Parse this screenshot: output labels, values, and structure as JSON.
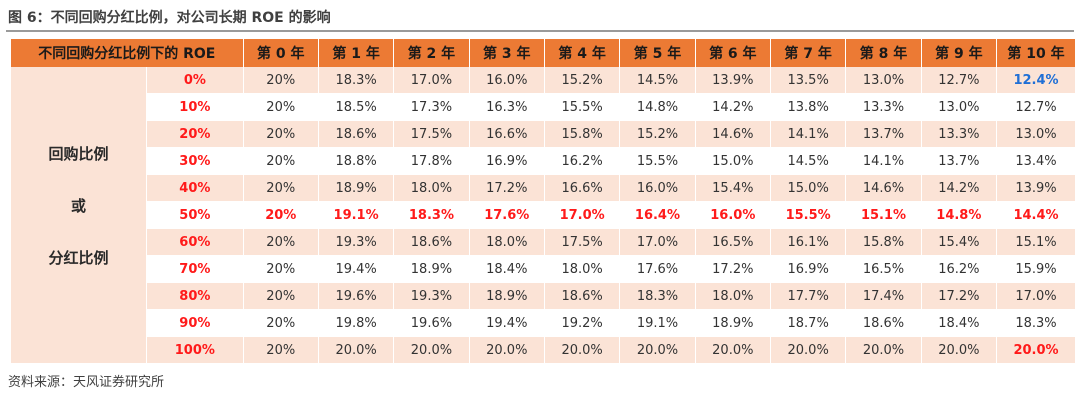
{
  "title": "图 6：不同回购分红比例，对公司长期 ROE 的影响",
  "table": {
    "corner_header": "不同回购分红比例下的 ROE",
    "year_headers": [
      "第 0 年",
      "第 1 年",
      "第 2 年",
      "第 3 年",
      "第 4 年",
      "第 5 年",
      "第 6 年",
      "第 7 年",
      "第 8 年",
      "第 9 年",
      "第 10 年"
    ],
    "side_labels": [
      "回购比例",
      "或",
      "分红比例"
    ],
    "rows": [
      {
        "ratio": "0%",
        "values": [
          "20%",
          "18.3%",
          "17.0%",
          "16.0%",
          "15.2%",
          "14.5%",
          "13.9%",
          "13.5%",
          "13.0%",
          "12.7%",
          "12.4%"
        ]
      },
      {
        "ratio": "10%",
        "values": [
          "20%",
          "18.5%",
          "17.3%",
          "16.3%",
          "15.5%",
          "14.8%",
          "14.2%",
          "13.8%",
          "13.3%",
          "13.0%",
          "12.7%"
        ]
      },
      {
        "ratio": "20%",
        "values": [
          "20%",
          "18.6%",
          "17.5%",
          "16.6%",
          "15.8%",
          "15.2%",
          "14.6%",
          "14.1%",
          "13.7%",
          "13.3%",
          "13.0%"
        ]
      },
      {
        "ratio": "30%",
        "values": [
          "20%",
          "18.8%",
          "17.8%",
          "16.9%",
          "16.2%",
          "15.5%",
          "15.0%",
          "14.5%",
          "14.1%",
          "13.7%",
          "13.4%"
        ]
      },
      {
        "ratio": "40%",
        "values": [
          "20%",
          "18.9%",
          "18.0%",
          "17.2%",
          "16.6%",
          "16.0%",
          "15.4%",
          "15.0%",
          "14.6%",
          "14.2%",
          "13.9%"
        ]
      },
      {
        "ratio": "50%",
        "values": [
          "20%",
          "19.1%",
          "18.3%",
          "17.6%",
          "17.0%",
          "16.4%",
          "16.0%",
          "15.5%",
          "15.1%",
          "14.8%",
          "14.4%"
        ]
      },
      {
        "ratio": "60%",
        "values": [
          "20%",
          "19.3%",
          "18.6%",
          "18.0%",
          "17.5%",
          "17.0%",
          "16.5%",
          "16.1%",
          "15.8%",
          "15.4%",
          "15.1%"
        ]
      },
      {
        "ratio": "70%",
        "values": [
          "20%",
          "19.4%",
          "18.9%",
          "18.4%",
          "18.0%",
          "17.6%",
          "17.2%",
          "16.9%",
          "16.5%",
          "16.2%",
          "15.9%"
        ]
      },
      {
        "ratio": "80%",
        "values": [
          "20%",
          "19.6%",
          "19.3%",
          "18.9%",
          "18.6%",
          "18.3%",
          "18.0%",
          "17.7%",
          "17.4%",
          "17.2%",
          "17.0%"
        ]
      },
      {
        "ratio": "90%",
        "values": [
          "20%",
          "19.8%",
          "19.6%",
          "19.4%",
          "19.2%",
          "19.1%",
          "18.9%",
          "18.7%",
          "18.6%",
          "18.4%",
          "18.3%"
        ]
      },
      {
        "ratio": "100%",
        "values": [
          "20%",
          "20.0%",
          "20.0%",
          "20.0%",
          "20.0%",
          "20.0%",
          "20.0%",
          "20.0%",
          "20.0%",
          "20.0%",
          "20.0%"
        ]
      }
    ]
  },
  "source": "资料来源：天风证券研究所",
  "colors": {
    "header_bg": "#ec7a34",
    "stripe_bg": "#fbe3d6",
    "highlight_red": "#ff1a1a",
    "highlight_blue": "#1f6fd6"
  }
}
